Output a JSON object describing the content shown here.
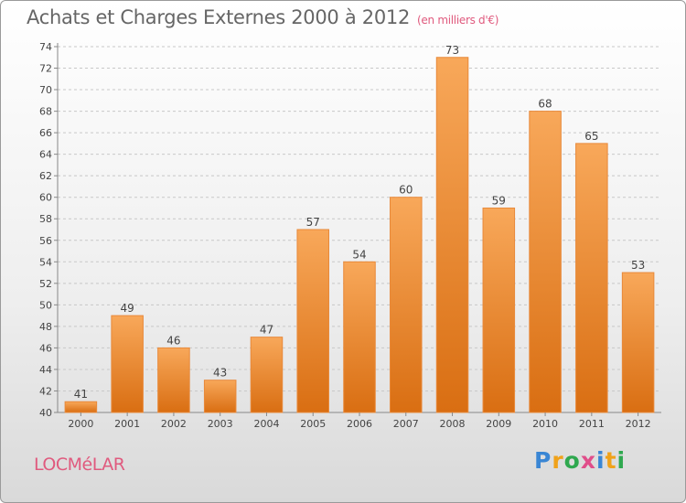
{
  "title": "Achats et Charges Externes 2000 à 2012",
  "subtitle": "(en milliers d'€)",
  "location": "LOCMéLAR",
  "logo": {
    "letters": [
      "P",
      "r",
      "o",
      "x",
      "i",
      "t",
      "i"
    ],
    "colors": [
      "#3a86d4",
      "#f0a21a",
      "#2fa84f",
      "#e04e8a",
      "#3a86d4",
      "#f0a21a",
      "#2fa84f"
    ]
  },
  "colors": {
    "bar_top": "#f8a85a",
    "bar_bottom": "#d96e12",
    "bar_edge": "#e8893a"
  },
  "chart_data": {
    "type": "bar",
    "categories": [
      "2000",
      "2001",
      "2002",
      "2003",
      "2004",
      "2005",
      "2006",
      "2007",
      "2008",
      "2009",
      "2010",
      "2011",
      "2012"
    ],
    "values": [
      41,
      49,
      46,
      43,
      47,
      57,
      54,
      60,
      73,
      59,
      68,
      65,
      53
    ],
    "ylim": [
      40,
      74
    ],
    "yticks": [
      40,
      42,
      44,
      46,
      48,
      50,
      52,
      54,
      56,
      58,
      60,
      62,
      64,
      66,
      68,
      70,
      72,
      74
    ],
    "grid": "horizontal dashed",
    "legend": "none"
  }
}
